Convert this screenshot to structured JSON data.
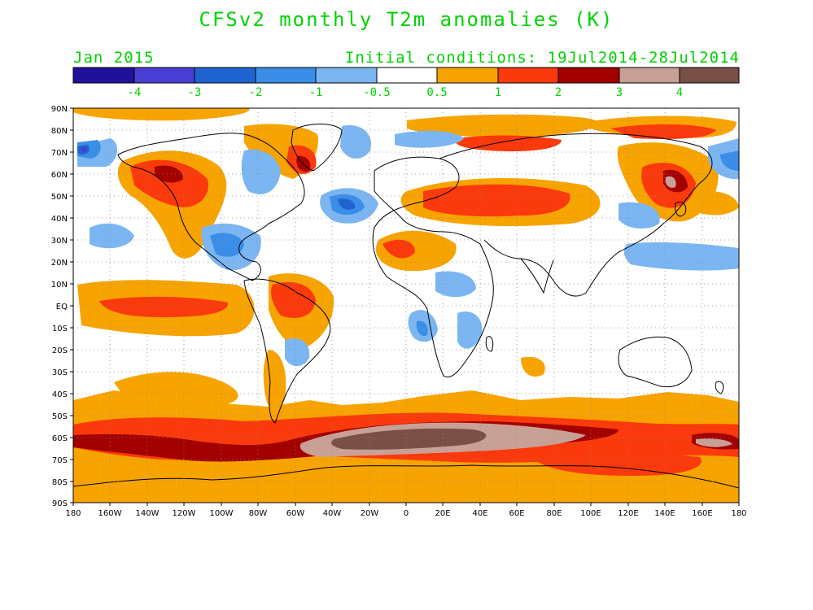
{
  "title": "CFSv2 monthly T2m anomalies (K)",
  "subtitle_left": "Jan 2015",
  "subtitle_right": "Initial conditions: 19Jul2014-28Jul2014",
  "colors": {
    "label_green": "#00d200",
    "bins": [
      "#20109a",
      "#4a3fd4",
      "#1f63d1",
      "#3a8ee8",
      "#7bb6f2",
      "#ffffff",
      "#f7a300",
      "#fa3a0c",
      "#a30000",
      "#c9a095",
      "#7a4f45"
    ]
  },
  "colorbar": {
    "tick_labels": [
      "-4",
      "-3",
      "-2",
      "-1",
      "-0.5",
      "0.5",
      "1",
      "2",
      "3",
      "4"
    ]
  },
  "map": {
    "lat_labels": [
      "90N",
      "80N",
      "70N",
      "60N",
      "50N",
      "40N",
      "30N",
      "20N",
      "10N",
      "EQ",
      "10S",
      "20S",
      "30S",
      "40S",
      "50S",
      "60S",
      "70S",
      "80S",
      "90S"
    ],
    "lon_labels": [
      "180",
      "160W",
      "140W",
      "120W",
      "100W",
      "80W",
      "60W",
      "40W",
      "20W",
      "0",
      "20E",
      "40E",
      "60E",
      "80E",
      "100E",
      "120E",
      "140E",
      "160E",
      "180"
    ]
  }
}
